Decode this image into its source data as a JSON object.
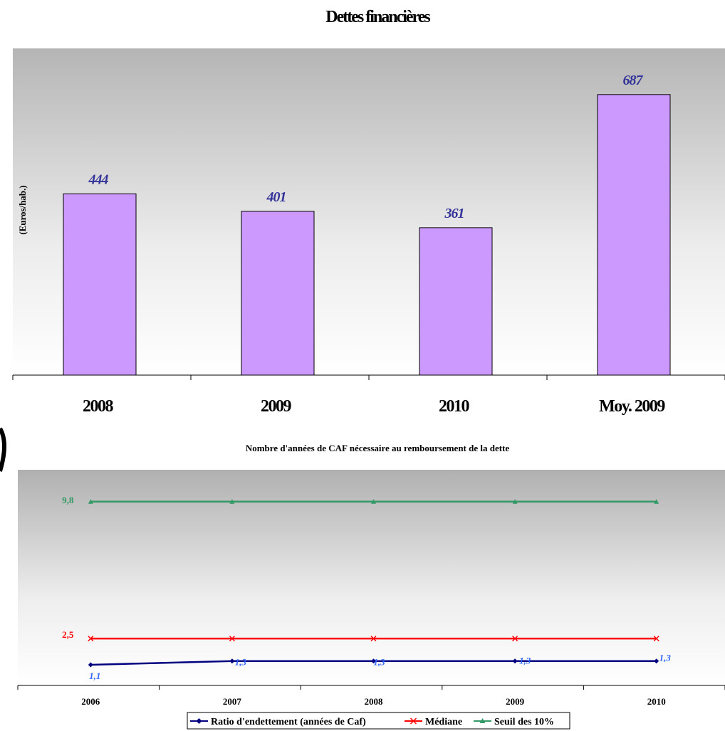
{
  "chart_data": [
    {
      "type": "bar",
      "title": "Dettes financières",
      "ylabel": "(Euros/hab.)",
      "categories": [
        "2008",
        "2009",
        "2010",
        "Moy. 2009"
      ],
      "values": [
        444,
        401,
        361,
        687
      ],
      "data_labels": [
        "444",
        "401",
        "361",
        "687"
      ],
      "ylim": [
        0,
        800
      ],
      "bar_color": "#CC99FF",
      "grid": false
    },
    {
      "type": "line",
      "title": "Nombre d'années de CAF nécessaire au  remboursement de la dette",
      "categories": [
        "2006",
        "2007",
        "2008",
        "2009",
        "2010"
      ],
      "ylim": [
        0,
        11.5
      ],
      "grid": false,
      "legend_position": "bottom",
      "series": [
        {
          "name": "Ratio d'endettement (années de Caf)",
          "values": [
            1.1,
            1.3,
            1.3,
            1.3,
            1.3
          ],
          "data_labels": [
            "1,1",
            "1,3",
            "1,3",
            "1,3",
            "1,3"
          ],
          "color": "#000080",
          "marker": "diamond"
        },
        {
          "name": "Médiane",
          "values": [
            2.5,
            2.5,
            2.5,
            2.5,
            2.5
          ],
          "data_labels": [
            "2,5"
          ],
          "color": "#FF0000",
          "marker": "x"
        },
        {
          "name": "Seuil des 10%",
          "values": [
            9.8,
            9.8,
            9.8,
            9.8,
            9.8
          ],
          "data_labels": [
            "9,8"
          ],
          "color": "#339966",
          "marker": "triangle"
        }
      ]
    }
  ]
}
